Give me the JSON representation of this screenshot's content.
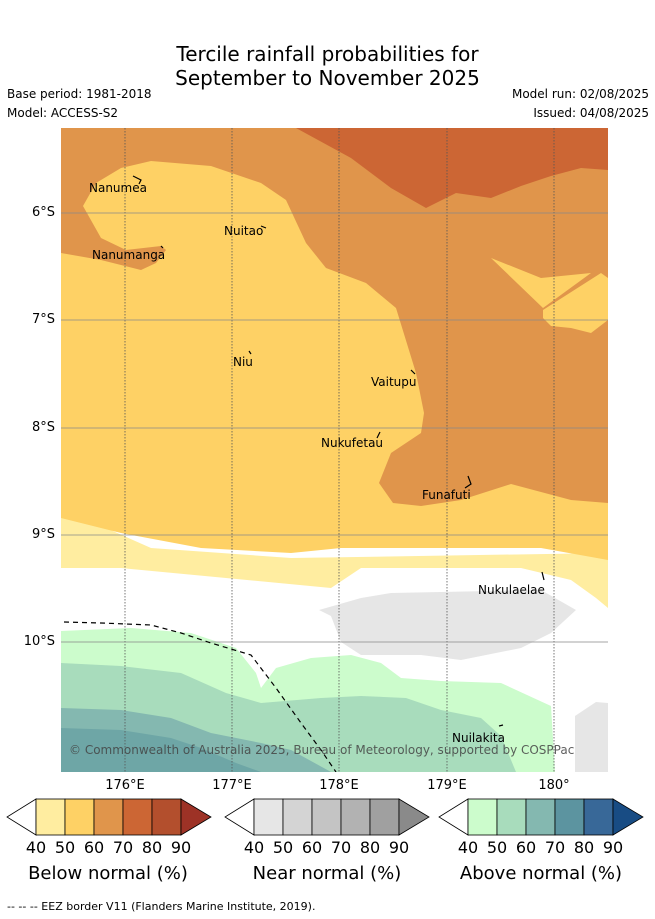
{
  "title": {
    "line1": "Tercile rainfall probabilities for",
    "line2": "September to November 2025"
  },
  "meta": {
    "base_period": "Base period: 1981-2018",
    "model": "Model: ACCESS-S2",
    "model_run": "Model run: 02/08/2025",
    "issued": "Issued: 04/08/2025"
  },
  "map": {
    "lat_labels": [
      "6°S",
      "7°S",
      "8°S",
      "9°S",
      "10°S"
    ],
    "lon_labels": [
      "176°E",
      "177°E",
      "178°E",
      "179°E",
      "180°"
    ],
    "places": [
      "Nanumea",
      "Nuitao",
      "Nanumanga",
      "Niu",
      "Vaitupu",
      "Nukufetau",
      "Funafuti",
      "Nukulaelae",
      "Nuilakita"
    ],
    "copyright": "© Commonwealth of Australia 2025, Bureau of Meteorology, supported by COSPPac"
  },
  "legend": {
    "ticks": [
      "40",
      "50",
      "60",
      "70",
      "80",
      "90"
    ],
    "below": {
      "label": "Below normal (%)",
      "colors": [
        "#ffffff",
        "#ffeda0",
        "#fed165",
        "#e0954b",
        "#cc6634",
        "#b34f2d",
        "#9d3226"
      ]
    },
    "near": {
      "label": "Near normal (%)",
      "colors": [
        "#ffffff",
        "#e6e6e6",
        "#d4d4d4",
        "#c4c4c4",
        "#b2b2b2",
        "#a0a0a0",
        "#8a8a8a"
      ]
    },
    "above": {
      "label": "Above normal (%)",
      "colors": [
        "#ffffff",
        "#ccfccc",
        "#a8dcbc",
        "#84b8b0",
        "#5c94a0",
        "#386898",
        "#184c84"
      ]
    }
  },
  "footnote": "-- -- -- EEZ border V11 (Flanders Marine Institute, 2019)."
}
